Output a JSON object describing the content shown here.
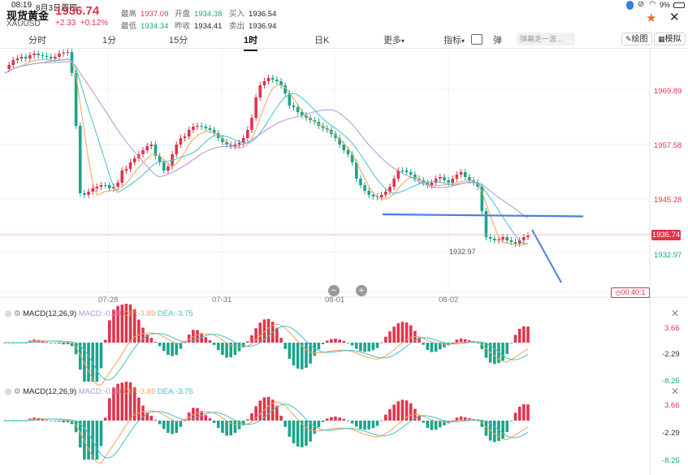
{
  "status": {
    "time": "08:19",
    "date": "8月3日周四",
    "battery": "9%"
  },
  "header": {
    "title": "现货黄金",
    "symbol": "XAUUSD",
    "price": "1936.74",
    "change": "+2.33",
    "change_pct": "+0.12%",
    "high_label": "最高",
    "high": "1937.09",
    "low_label": "最低",
    "low": "1934.34",
    "open_label": "开盘",
    "open": "1934.38",
    "prev_label": "昨收",
    "prev": "1934.41",
    "buy_label": "买入",
    "buy": "1936.54",
    "sell_label": "卖出",
    "sell": "1936.94"
  },
  "tabs": {
    "t1": "分时",
    "t2": "1分",
    "t3": "15分",
    "t4": "1时",
    "t5": "日K",
    "more": "更多"
  },
  "toolbar": {
    "indicator": "指标",
    "danmu_icon_label": "弹",
    "danmu_placeholder": "弹幕走一波...",
    "draw": "绘图",
    "simulate": "模拟"
  },
  "price_axis": {
    "p1": "1969.89",
    "p2": "1957.58",
    "p3": "1945.28",
    "p4": "1936.74",
    "p5": "1932.97"
  },
  "low_marker": "1932.97",
  "dates": {
    "d1": "07-28",
    "d2": "07-31",
    "d3": "08-01",
    "d4": "08-02"
  },
  "timer": "00:40:1",
  "macd": {
    "name": "MACD(12,26,9)",
    "macd": "MACD:-0.30",
    "dif": "DIF:-3.89",
    "dea": "DEA:-3.75",
    "axis_top": "3.66",
    "axis_mid": "-2.29",
    "axis_bot": "-8.25"
  },
  "colors": {
    "up": "#e0344b",
    "down": "#1aa58a",
    "ma1": "#f0a35c",
    "ma2": "#3fc1c9",
    "ma3": "#b392d6",
    "line": "#4a7fe0"
  },
  "icons": [
    "mic-icon",
    "link-icon",
    "wifi-icon",
    "battery-icon",
    "star-icon",
    "close-icon",
    "pencil-icon",
    "grid-icon",
    "settings-icon",
    "plus-icon",
    "minus-icon"
  ]
}
